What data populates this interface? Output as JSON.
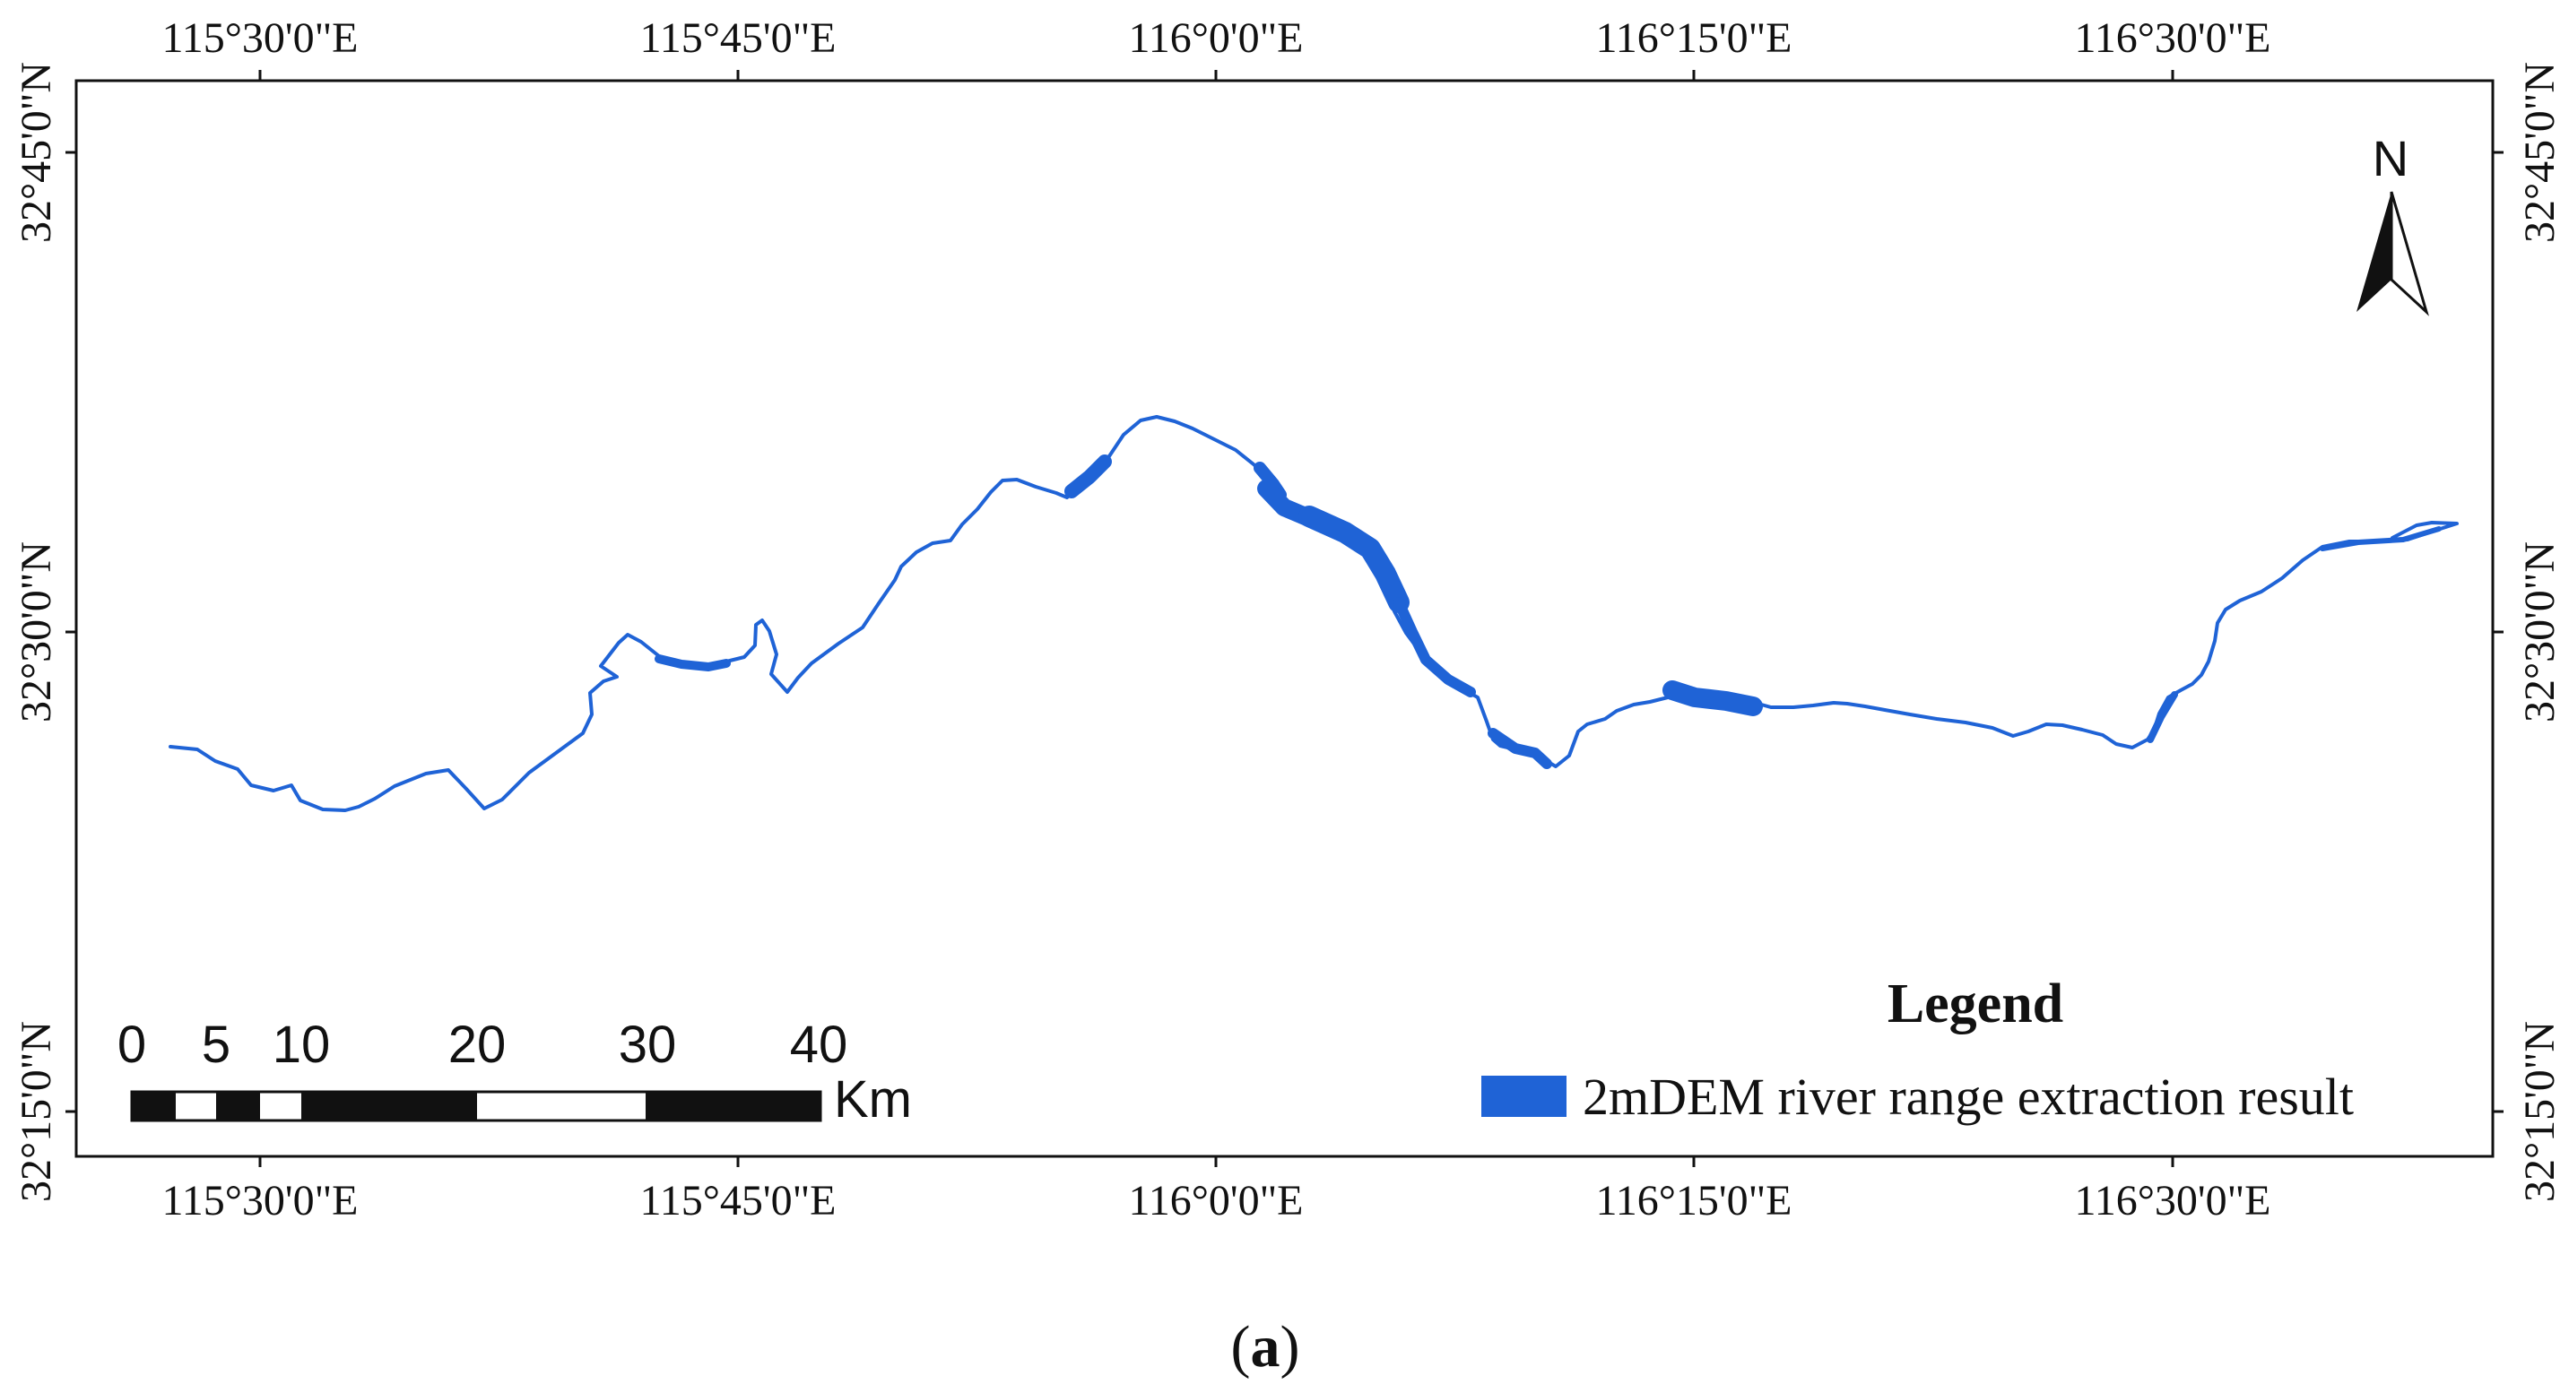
{
  "map": {
    "top_lon_labels": [
      "115°30'0\"E",
      "115°45'0\"E",
      "116°0'0\"E",
      "116°15'0\"E",
      "116°30'0\"E"
    ],
    "bottom_lon_labels": [
      "115°30'0\"E",
      "115°45'0\"E",
      "116°0'0\"E",
      "116°15'0\"E",
      "116°30'0\"E"
    ],
    "left_lat_labels": [
      "32°45'0\"N",
      "32°30'0\"N",
      "32°15'0\"N"
    ],
    "right_lat_labels": [
      "32°45'0\"N",
      "32°30'0\"N",
      "32°15'0\"N"
    ],
    "river_color": "#1f63d6",
    "frame_color": "#111111"
  },
  "north_arrow": {
    "label": "N"
  },
  "scale_bar": {
    "labels": [
      "0",
      "5",
      "10",
      "20",
      "30",
      "40"
    ],
    "unit": "Km"
  },
  "legend": {
    "title": "Legend",
    "items": [
      {
        "label": "2mDEM river range extraction result",
        "color": "#1f63d6"
      }
    ]
  },
  "caption": {
    "bold": "a",
    "open": "(",
    "close": ")"
  }
}
